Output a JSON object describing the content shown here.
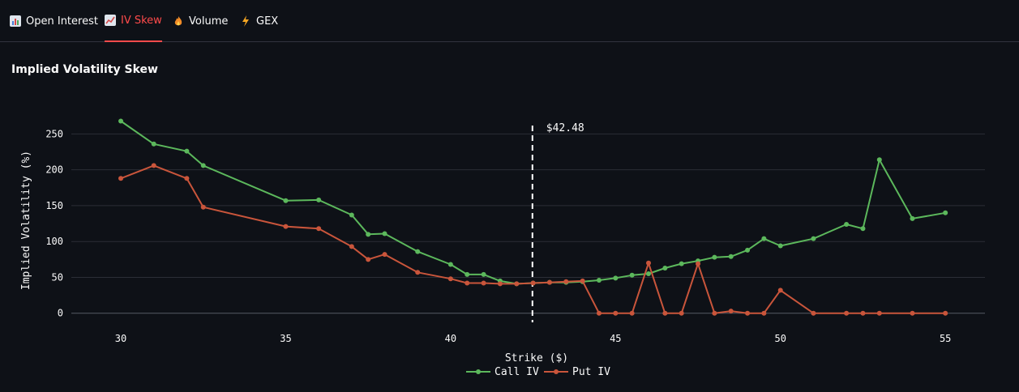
{
  "tabs": [
    {
      "label": "Open Interest",
      "icon": "bar-chart-icon"
    },
    {
      "label": "IV Skew",
      "icon": "line-chart-icon",
      "active": true
    },
    {
      "label": "Volume",
      "icon": "fire-icon"
    },
    {
      "label": "GEX",
      "icon": "lightning-icon"
    }
  ],
  "section_title": "Implied Volatility Skew",
  "colors": {
    "background": "#0e1117",
    "call": "#5cb85c",
    "put": "#c9553b",
    "accent": "#ff4b4b",
    "grid": "#2b2e36"
  },
  "chart_data": {
    "type": "line",
    "xlabel": "Strike ($)",
    "ylabel": "Implied Volatility (%)",
    "xlim": [
      28.5,
      56.2
    ],
    "ylim": [
      -15,
      290
    ],
    "xticks": [
      30,
      35,
      40,
      45,
      50,
      55
    ],
    "yticks": [
      0,
      50,
      100,
      150,
      200,
      250
    ],
    "grid": true,
    "legend_position": "bottom-center",
    "spot": {
      "value": 42.48,
      "label": "$42.48"
    },
    "series": [
      {
        "name": "Call IV",
        "color": "#5cb85c",
        "points": [
          [
            30,
            268
          ],
          [
            31,
            236
          ],
          [
            32,
            226
          ],
          [
            32.5,
            206
          ],
          [
            35,
            157
          ],
          [
            36,
            158
          ],
          [
            37,
            137
          ],
          [
            37.5,
            110
          ],
          [
            38,
            111
          ],
          [
            39,
            86
          ],
          [
            40,
            68
          ],
          [
            40.5,
            54
          ],
          [
            41,
            54
          ],
          [
            41.5,
            45
          ],
          [
            42,
            41
          ],
          [
            42.5,
            42
          ],
          [
            43,
            43
          ],
          [
            43.5,
            43
          ],
          [
            44,
            44
          ],
          [
            44.5,
            46
          ],
          [
            45,
            49
          ],
          [
            45.5,
            53
          ],
          [
            46,
            55
          ],
          [
            46.5,
            63
          ],
          [
            47,
            69
          ],
          [
            47.5,
            73
          ],
          [
            48,
            78
          ],
          [
            48.5,
            79
          ],
          [
            49,
            88
          ],
          [
            49.5,
            104
          ],
          [
            50,
            94
          ],
          [
            51,
            104
          ],
          [
            52,
            124
          ],
          [
            52.5,
            118
          ],
          [
            53,
            214
          ],
          [
            54,
            132
          ],
          [
            55,
            140
          ]
        ]
      },
      {
        "name": "Put IV",
        "color": "#c9553b",
        "points": [
          [
            30,
            188
          ],
          [
            31,
            206
          ],
          [
            32,
            188
          ],
          [
            32.5,
            148
          ],
          [
            35,
            121
          ],
          [
            36,
            118
          ],
          [
            37,
            93
          ],
          [
            37.5,
            75
          ],
          [
            38,
            82
          ],
          [
            39,
            57
          ],
          [
            40,
            48
          ],
          [
            40.5,
            42
          ],
          [
            41,
            42
          ],
          [
            41.5,
            41
          ],
          [
            42,
            41
          ],
          [
            42.5,
            42
          ],
          [
            43,
            43
          ],
          [
            43.5,
            44
          ],
          [
            44,
            45
          ],
          [
            44.5,
            0
          ],
          [
            45,
            0
          ],
          [
            45.5,
            0
          ],
          [
            46,
            70
          ],
          [
            46.5,
            0
          ],
          [
            47,
            0
          ],
          [
            47.5,
            69
          ],
          [
            48,
            0
          ],
          [
            48.5,
            3
          ],
          [
            49,
            0
          ],
          [
            49.5,
            0
          ],
          [
            50,
            32
          ],
          [
            51,
            0
          ],
          [
            52,
            0
          ],
          [
            52.5,
            0
          ],
          [
            53,
            0
          ],
          [
            54,
            0
          ],
          [
            55,
            0
          ]
        ]
      }
    ]
  }
}
